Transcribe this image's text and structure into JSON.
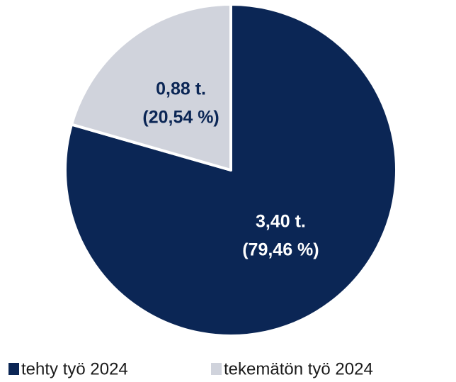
{
  "chart_data": {
    "type": "pie",
    "categories": [
      "tehty työ 2024",
      "tekemätön työ 2024"
    ],
    "values": [
      3.4,
      0.88
    ],
    "value_labels": [
      "3,40 t.",
      "0,88 t."
    ],
    "shares": [
      79.46,
      20.54
    ],
    "share_labels": [
      "(79,46 %)",
      "(20,54 %)"
    ],
    "colors": [
      "#0b2655",
      "#d0d3dc"
    ],
    "label_colors": [
      "#ffffff",
      "#0b2655"
    ],
    "legend": "bottom"
  }
}
